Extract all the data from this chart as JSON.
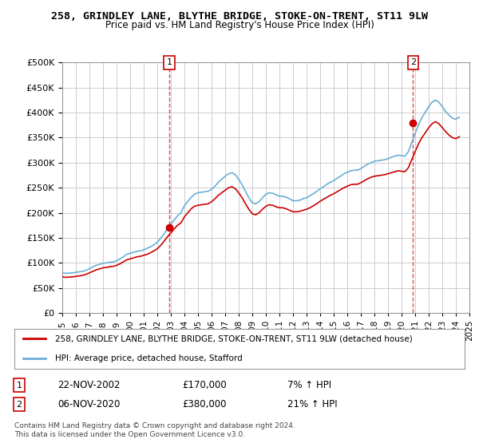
{
  "title": "258, GRINDLEY LANE, BLYTHE BRIDGE, STOKE-ON-TRENT, ST11 9LW",
  "subtitle": "Price paid vs. HM Land Registry's House Price Index (HPI)",
  "ylabel_max": 500000,
  "yticks": [
    0,
    50000,
    100000,
    150000,
    200000,
    250000,
    300000,
    350000,
    400000,
    450000,
    500000
  ],
  "legend_line1": "258, GRINDLEY LANE, BLYTHE BRIDGE, STOKE-ON-TRENT, ST11 9LW (detached house)",
  "legend_line2": "HPI: Average price, detached house, Stafford",
  "annotation1_label": "1",
  "annotation1_date": "22-NOV-2002",
  "annotation1_price": "£170,000",
  "annotation1_hpi": "7% ↑ HPI",
  "annotation2_label": "2",
  "annotation2_date": "06-NOV-2020",
  "annotation2_price": "£380,000",
  "annotation2_hpi": "21% ↑ HPI",
  "footnote": "Contains HM Land Registry data © Crown copyright and database right 2024.\nThis data is licensed under the Open Government Licence v3.0.",
  "hpi_color": "#6baed6",
  "price_color": "#cc0000",
  "marker1_color": "#cc0000",
  "marker2_color": "#cc0000",
  "background_color": "#ffffff",
  "grid_color": "#cccccc",
  "hpi_data": {
    "dates": [
      1995.0,
      1995.25,
      1995.5,
      1995.75,
      1996.0,
      1996.25,
      1996.5,
      1996.75,
      1997.0,
      1997.25,
      1997.5,
      1997.75,
      1998.0,
      1998.25,
      1998.5,
      1998.75,
      1999.0,
      1999.25,
      1999.5,
      1999.75,
      2000.0,
      2000.25,
      2000.5,
      2000.75,
      2001.0,
      2001.25,
      2001.5,
      2001.75,
      2002.0,
      2002.25,
      2002.5,
      2002.75,
      2003.0,
      2003.25,
      2003.5,
      2003.75,
      2004.0,
      2004.25,
      2004.5,
      2004.75,
      2005.0,
      2005.25,
      2005.5,
      2005.75,
      2006.0,
      2006.25,
      2006.5,
      2006.75,
      2007.0,
      2007.25,
      2007.5,
      2007.75,
      2008.0,
      2008.25,
      2008.5,
      2008.75,
      2009.0,
      2009.25,
      2009.5,
      2009.75,
      2010.0,
      2010.25,
      2010.5,
      2010.75,
      2011.0,
      2011.25,
      2011.5,
      2011.75,
      2012.0,
      2012.25,
      2012.5,
      2012.75,
      2013.0,
      2013.25,
      2013.5,
      2013.75,
      2014.0,
      2014.25,
      2014.5,
      2014.75,
      2015.0,
      2015.25,
      2015.5,
      2015.75,
      2016.0,
      2016.25,
      2016.5,
      2016.75,
      2017.0,
      2017.25,
      2017.5,
      2017.75,
      2018.0,
      2018.25,
      2018.5,
      2018.75,
      2019.0,
      2019.25,
      2019.5,
      2019.75,
      2020.0,
      2020.25,
      2020.5,
      2020.75,
      2021.0,
      2021.25,
      2021.5,
      2021.75,
      2022.0,
      2022.25,
      2022.5,
      2022.75,
      2023.0,
      2023.25,
      2023.5,
      2023.75,
      2024.0,
      2024.25
    ],
    "values": [
      72000,
      71000,
      71500,
      72000,
      73000,
      74000,
      75000,
      77000,
      80000,
      83000,
      86000,
      88000,
      90000,
      91000,
      92000,
      93000,
      95000,
      98000,
      102000,
      106000,
      108000,
      110000,
      112000,
      113000,
      115000,
      117000,
      120000,
      124000,
      128000,
      135000,
      143000,
      152000,
      160000,
      168000,
      175000,
      180000,
      192000,
      200000,
      208000,
      213000,
      215000,
      216000,
      217000,
      218000,
      222000,
      228000,
      235000,
      240000,
      245000,
      250000,
      252000,
      248000,
      240000,
      230000,
      218000,
      207000,
      198000,
      196000,
      200000,
      207000,
      213000,
      216000,
      215000,
      212000,
      210000,
      210000,
      208000,
      205000,
      202000,
      202000,
      203000,
      205000,
      207000,
      210000,
      214000,
      218000,
      223000,
      227000,
      231000,
      235000,
      238000,
      242000,
      246000,
      250000,
      253000,
      256000,
      257000,
      257000,
      260000,
      264000,
      268000,
      271000,
      273000,
      274000,
      275000,
      276000,
      278000,
      280000,
      282000,
      284000,
      283000,
      282000,
      290000,
      306000,
      322000,
      338000,
      350000,
      360000,
      370000,
      378000,
      382000,
      378000,
      370000,
      362000,
      355000,
      350000,
      348000,
      352000
    ]
  },
  "hpi_indexed_data": {
    "dates": [
      1995.0,
      1995.25,
      1995.5,
      1995.75,
      1996.0,
      1996.25,
      1996.5,
      1996.75,
      1997.0,
      1997.25,
      1997.5,
      1997.75,
      1998.0,
      1998.25,
      1998.5,
      1998.75,
      1999.0,
      1999.25,
      1999.5,
      1999.75,
      2000.0,
      2000.25,
      2000.5,
      2000.75,
      2001.0,
      2001.25,
      2001.5,
      2001.75,
      2002.0,
      2002.25,
      2002.5,
      2002.75,
      2003.0,
      2003.25,
      2003.5,
      2003.75,
      2004.0,
      2004.25,
      2004.5,
      2004.75,
      2005.0,
      2005.25,
      2005.5,
      2005.75,
      2006.0,
      2006.25,
      2006.5,
      2006.75,
      2007.0,
      2007.25,
      2007.5,
      2007.75,
      2008.0,
      2008.25,
      2008.5,
      2008.75,
      2009.0,
      2009.25,
      2009.5,
      2009.75,
      2010.0,
      2010.25,
      2010.5,
      2010.75,
      2011.0,
      2011.25,
      2011.5,
      2011.75,
      2012.0,
      2012.25,
      2012.5,
      2012.75,
      2013.0,
      2013.25,
      2013.5,
      2013.75,
      2014.0,
      2014.25,
      2014.5,
      2014.75,
      2015.0,
      2015.25,
      2015.5,
      2015.75,
      2016.0,
      2016.25,
      2016.5,
      2016.75,
      2017.0,
      2017.25,
      2017.5,
      2017.75,
      2018.0,
      2018.25,
      2018.5,
      2018.75,
      2019.0,
      2019.25,
      2019.5,
      2019.75,
      2020.0,
      2020.25,
      2020.5,
      2020.75,
      2021.0,
      2021.25,
      2021.5,
      2021.75,
      2022.0,
      2022.25,
      2022.5,
      2022.75,
      2023.0,
      2023.25,
      2023.5,
      2023.75,
      2024.0,
      2024.25
    ],
    "values": [
      80000,
      79000,
      79500,
      80000,
      81000,
      82000,
      83000,
      85000,
      88000,
      92000,
      95000,
      97000,
      99000,
      100000,
      101000,
      102000,
      104000,
      108000,
      112000,
      117000,
      119000,
      121000,
      123000,
      124000,
      126000,
      129000,
      132000,
      136000,
      141000,
      149000,
      158000,
      168000,
      177000,
      186000,
      194000,
      200000,
      214000,
      223000,
      231000,
      237000,
      240000,
      241000,
      242000,
      243000,
      247000,
      253000,
      261000,
      267000,
      273000,
      278000,
      280000,
      276000,
      267000,
      256000,
      243000,
      230000,
      220000,
      218000,
      222000,
      230000,
      237000,
      240000,
      239000,
      236000,
      233000,
      233000,
      231000,
      228000,
      224000,
      224000,
      225000,
      228000,
      230000,
      234000,
      238000,
      243000,
      248000,
      252000,
      257000,
      261000,
      264000,
      269000,
      273000,
      278000,
      281000,
      284000,
      285000,
      285000,
      288000,
      293000,
      297000,
      300000,
      303000,
      304000,
      305000,
      306000,
      308000,
      311000,
      313000,
      315000,
      314000,
      313000,
      322000,
      340000,
      358000,
      376000,
      390000,
      401000,
      412000,
      421000,
      425000,
      421000,
      412000,
      402000,
      395000,
      389000,
      387000,
      391000
    ]
  },
  "sale_points": [
    {
      "date": 2002.9,
      "price": 170000,
      "label": "1"
    },
    {
      "date": 2020.85,
      "price": 380000,
      "label": "2"
    }
  ],
  "xmin": 1995,
  "xmax": 2025,
  "xticks": [
    1995,
    1996,
    1997,
    1998,
    1999,
    2000,
    2001,
    2002,
    2003,
    2004,
    2005,
    2006,
    2007,
    2008,
    2009,
    2010,
    2011,
    2012,
    2013,
    2014,
    2015,
    2016,
    2017,
    2018,
    2019,
    2020,
    2021,
    2022,
    2023,
    2024,
    2025
  ]
}
